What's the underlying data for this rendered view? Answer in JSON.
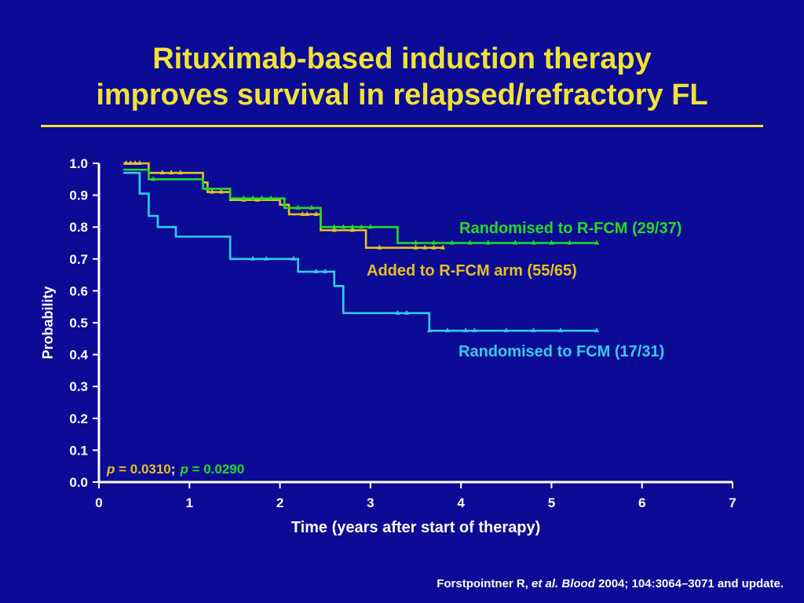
{
  "slide": {
    "title_line1": "Rituximab-based induction therapy",
    "title_line2": "improves survival in relapsed/refractory FL",
    "citation_author": "Forstpointner R, ",
    "citation_etal": "et al. Blood",
    "citation_rest": " 2004; 104:3064–3071 and update."
  },
  "colors": {
    "background": "#0b0b96",
    "title": "#f2e234",
    "text": "#ffffff",
    "r_fcm": "#22dd22",
    "added": "#e8c020",
    "fcm": "#33ccee"
  },
  "chart_data": {
    "type": "line",
    "xlabel": "Time (years after start of therapy)",
    "ylabel": "Probability",
    "xlim": [
      0,
      7
    ],
    "ylim": [
      0,
      1
    ],
    "xticks": [
      "0",
      "1",
      "2",
      "3",
      "4",
      "5",
      "6",
      "7"
    ],
    "yticks": [
      "0.0",
      "0.1",
      "0.2",
      "0.3",
      "0.4",
      "0.5",
      "0.6",
      "0.7",
      "0.8",
      "0.9",
      "1.0"
    ],
    "pvalue_p1": "p",
    "pvalue_v1": " = 0.0310",
    "pvalue_sep": ";",
    "pvalue_p2": "p",
    "pvalue_v2": " = 0.0290",
    "series": [
      {
        "name": "Randomised to R-FCM (29/37)",
        "color": "#22dd22",
        "steps": [
          [
            0.27,
            0.98
          ],
          [
            0.55,
            0.95
          ],
          [
            1.15,
            0.92
          ],
          [
            1.45,
            0.89
          ],
          [
            2.05,
            0.86
          ],
          [
            2.45,
            0.8
          ],
          [
            3.3,
            0.75
          ],
          [
            5.5,
            0.75
          ]
        ],
        "censors": [
          [
            0.6,
            0.95
          ],
          [
            1.2,
            0.92
          ],
          [
            1.6,
            0.89
          ],
          [
            1.7,
            0.89
          ],
          [
            1.8,
            0.89
          ],
          [
            1.9,
            0.89
          ],
          [
            2.2,
            0.86
          ],
          [
            2.35,
            0.86
          ],
          [
            2.6,
            0.8
          ],
          [
            2.7,
            0.8
          ],
          [
            2.8,
            0.8
          ],
          [
            2.9,
            0.8
          ],
          [
            3.0,
            0.8
          ],
          [
            3.5,
            0.75
          ],
          [
            3.7,
            0.75
          ],
          [
            3.9,
            0.75
          ],
          [
            4.1,
            0.75
          ],
          [
            4.3,
            0.75
          ],
          [
            4.6,
            0.75
          ],
          [
            4.8,
            0.75
          ],
          [
            5.0,
            0.75
          ],
          [
            5.2,
            0.75
          ],
          [
            5.5,
            0.75
          ]
        ]
      },
      {
        "name": "Added to R-FCM arm (55/65)",
        "color": "#e8c020",
        "steps": [
          [
            0.27,
            1.0
          ],
          [
            0.55,
            0.97
          ],
          [
            1.15,
            0.94
          ],
          [
            1.2,
            0.91
          ],
          [
            1.45,
            0.885
          ],
          [
            2.0,
            0.87
          ],
          [
            2.1,
            0.84
          ],
          [
            2.45,
            0.79
          ],
          [
            2.95,
            0.735
          ],
          [
            3.8,
            0.735
          ]
        ],
        "censors": [
          [
            0.3,
            1.0
          ],
          [
            0.35,
            1.0
          ],
          [
            0.4,
            1.0
          ],
          [
            0.45,
            1.0
          ],
          [
            0.7,
            0.97
          ],
          [
            0.8,
            0.97
          ],
          [
            0.9,
            0.97
          ],
          [
            1.25,
            0.91
          ],
          [
            1.35,
            0.91
          ],
          [
            1.6,
            0.885
          ],
          [
            1.75,
            0.885
          ],
          [
            2.25,
            0.84
          ],
          [
            2.3,
            0.84
          ],
          [
            2.4,
            0.84
          ],
          [
            2.6,
            0.79
          ],
          [
            2.8,
            0.79
          ],
          [
            3.1,
            0.735
          ],
          [
            3.5,
            0.735
          ],
          [
            3.6,
            0.735
          ],
          [
            3.7,
            0.735
          ],
          [
            3.8,
            0.735
          ]
        ]
      },
      {
        "name": "Randomised to FCM (17/31)",
        "color": "#33ccee",
        "steps": [
          [
            0.27,
            0.97
          ],
          [
            0.45,
            0.905
          ],
          [
            0.55,
            0.835
          ],
          [
            0.65,
            0.8
          ],
          [
            0.85,
            0.77
          ],
          [
            1.45,
            0.7
          ],
          [
            2.2,
            0.66
          ],
          [
            2.6,
            0.615
          ],
          [
            2.7,
            0.53
          ],
          [
            3.65,
            0.475
          ],
          [
            5.5,
            0.475
          ]
        ],
        "censors": [
          [
            1.7,
            0.7
          ],
          [
            1.85,
            0.7
          ],
          [
            2.15,
            0.7
          ],
          [
            2.4,
            0.66
          ],
          [
            2.5,
            0.66
          ],
          [
            3.3,
            0.53
          ],
          [
            3.4,
            0.53
          ],
          [
            3.65,
            0.475
          ],
          [
            3.85,
            0.475
          ],
          [
            4.05,
            0.475
          ],
          [
            4.15,
            0.475
          ],
          [
            4.5,
            0.475
          ],
          [
            4.8,
            0.475
          ],
          [
            5.1,
            0.475
          ],
          [
            5.5,
            0.475
          ]
        ]
      }
    ]
  }
}
